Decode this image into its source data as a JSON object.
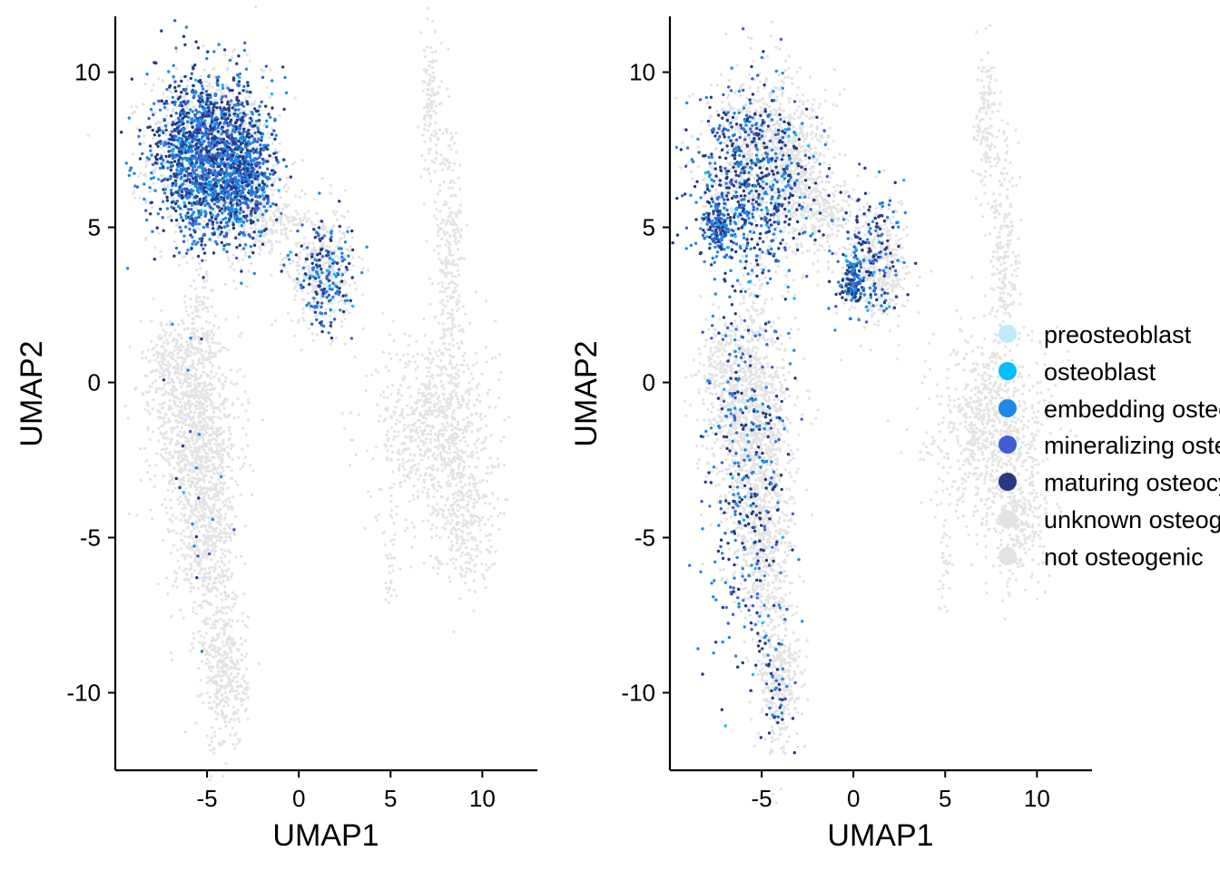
{
  "chart_data": [
    {
      "type": "scatter",
      "title": "",
      "xlabel": "UMAP1",
      "ylabel": "UMAP2",
      "xlim": [
        -10,
        13
      ],
      "ylim": [
        -12.5,
        11.8
      ],
      "xticks": [
        "-5",
        "0",
        "5",
        "10"
      ],
      "yticks": [
        "-10",
        "-5",
        "0",
        "5",
        "10"
      ],
      "grid": false,
      "background_clusters": [
        {
          "name": "",
          "label": "upper-left osteogenic island",
          "center": [
            -5.0,
            7.3
          ],
          "spread": [
            1.6,
            1.4
          ]
        },
        {
          "name": "",
          "label": "bridge cluster",
          "center": [
            -1.5,
            5.3
          ],
          "spread": [
            0.9,
            0.5
          ]
        },
        {
          "name": "",
          "label": "right lobe of osteogenic island",
          "center": [
            1.2,
            3.7
          ],
          "spread": [
            0.9,
            1.0
          ]
        },
        {
          "name": "",
          "label": "lower-left elongated cluster",
          "center": [
            -5.5,
            -3.0
          ],
          "spread": [
            1.3,
            3.8
          ]
        },
        {
          "name": "",
          "label": "right elongated cluster",
          "center": [
            8.0,
            0.5
          ],
          "spread": [
            1.4,
            5.0
          ]
        }
      ],
      "highlight_note": "dense coloured cells in the upper-left island and right lobe, sparse coloured cells in the lower-left cluster",
      "series": [
        {
          "name": "preosteoblast",
          "color": "#bfe9ff",
          "approx_count": 15
        },
        {
          "name": "osteoblast",
          "color": "#00bfff",
          "approx_count": 40
        },
        {
          "name": "embedding osteoblast",
          "color": "#1e88e5",
          "approx_count": 900
        },
        {
          "name": "mineralizing osteoblast",
          "color": "#3f5fd0",
          "approx_count": 500
        },
        {
          "name": "maturing osteocyte",
          "color": "#253a80",
          "approx_count": 900
        },
        {
          "name": "unknown osteogenic",
          "color": "#e3e3e3",
          "approx_count": 0
        },
        {
          "name": "not osteogenic",
          "color": "#e3e3e3",
          "approx_count": 12000
        }
      ]
    },
    {
      "type": "scatter",
      "title": "",
      "xlabel": "UMAP1",
      "ylabel": "UMAP2",
      "xlim": [
        -10,
        13
      ],
      "ylim": [
        -12.5,
        11.8
      ],
      "xticks": [
        "-5",
        "0",
        "5",
        "10"
      ],
      "yticks": [
        "-10",
        "-5",
        "0",
        "5",
        "10"
      ],
      "grid": false,
      "highlight_note": "sparser coloured cells across the upper-left island, a dense spot near (0, 3.2), and scattered cells in the lower-left cluster",
      "series": [
        {
          "name": "preosteoblast",
          "color": "#bfe9ff",
          "approx_count": 15
        },
        {
          "name": "osteoblast",
          "color": "#00bfff",
          "approx_count": 40
        },
        {
          "name": "embedding osteoblast",
          "color": "#1e88e5",
          "approx_count": 450
        },
        {
          "name": "mineralizing osteoblast",
          "color": "#3f5fd0",
          "approx_count": 420
        },
        {
          "name": "maturing osteocyte",
          "color": "#253a80",
          "approx_count": 500
        },
        {
          "name": "unknown osteogenic",
          "color": "#e3e3e3",
          "approx_count": 0
        },
        {
          "name": "not osteogenic",
          "color": "#e3e3e3",
          "approx_count": 12000
        }
      ]
    }
  ],
  "legend": {
    "placement": "right",
    "items": [
      {
        "label": "preosteoblast",
        "color": "#bfe9ff"
      },
      {
        "label": "osteoblast",
        "color": "#00bfff"
      },
      {
        "label": "embedding osteoblast",
        "color": "#1e88e5"
      },
      {
        "label": "mineralizing osteoblast",
        "color": "#3f5fd0"
      },
      {
        "label": "maturing osteocyte",
        "color": "#253a80"
      },
      {
        "label": "unknown osteogenic",
        "color": "#e3e3e3"
      },
      {
        "label": "not osteogenic",
        "color": "#e3e3e3"
      }
    ]
  }
}
